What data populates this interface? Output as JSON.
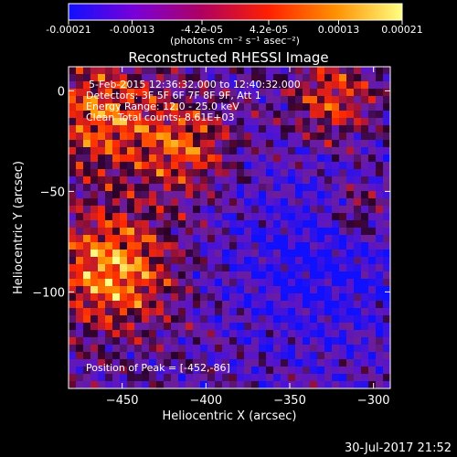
{
  "colorbar": {
    "tick_labels": [
      "-0.00021",
      "-0.00013",
      "-4.2e-05",
      "4.2e-05",
      "0.00013",
      "0.00021"
    ],
    "tick_values": [
      -0.00021,
      -0.00013,
      -4.2e-05,
      4.2e-05,
      0.00013,
      0.00021
    ],
    "range": [
      -0.00021,
      0.00021
    ],
    "units": "(photons cm⁻² s⁻¹ asec⁻²)",
    "colors": [
      "#1010ff",
      "#7a00d8",
      "#b00060",
      "#ff2000",
      "#ff9000",
      "#ffff80"
    ]
  },
  "chart_data": {
    "type": "heatmap",
    "title": "Reconstructed RHESSI Image",
    "xlabel": "Heliocentric X (arcsec)",
    "ylabel": "Heliocentric Y (arcsec)",
    "xlim": [
      -482,
      -290
    ],
    "ylim": [
      -148,
      12
    ],
    "x_ticks": [
      -450,
      -400,
      -350,
      -300
    ],
    "y_ticks": [
      0,
      -50,
      -100
    ],
    "x_tick_labels": [
      "−450",
      "−400",
      "−350",
      "−300"
    ],
    "y_tick_labels": [
      "0",
      "−50",
      "−100"
    ],
    "annotations": [
      "5-Feb-2015 12:36:32.000 to 12:40:32.000",
      "Detectors: 3F 5F 6F 7F 8F 9F, Att 1",
      "Energy Range: 12.0 - 25.0 keV",
      "Clean     Total counts: 8.61E+03"
    ],
    "peak_label": "Position of Peak = [-452,-86]",
    "peak": [
      -452,
      -86
    ]
  },
  "timestamp": "30-Jul-2017 21:52"
}
